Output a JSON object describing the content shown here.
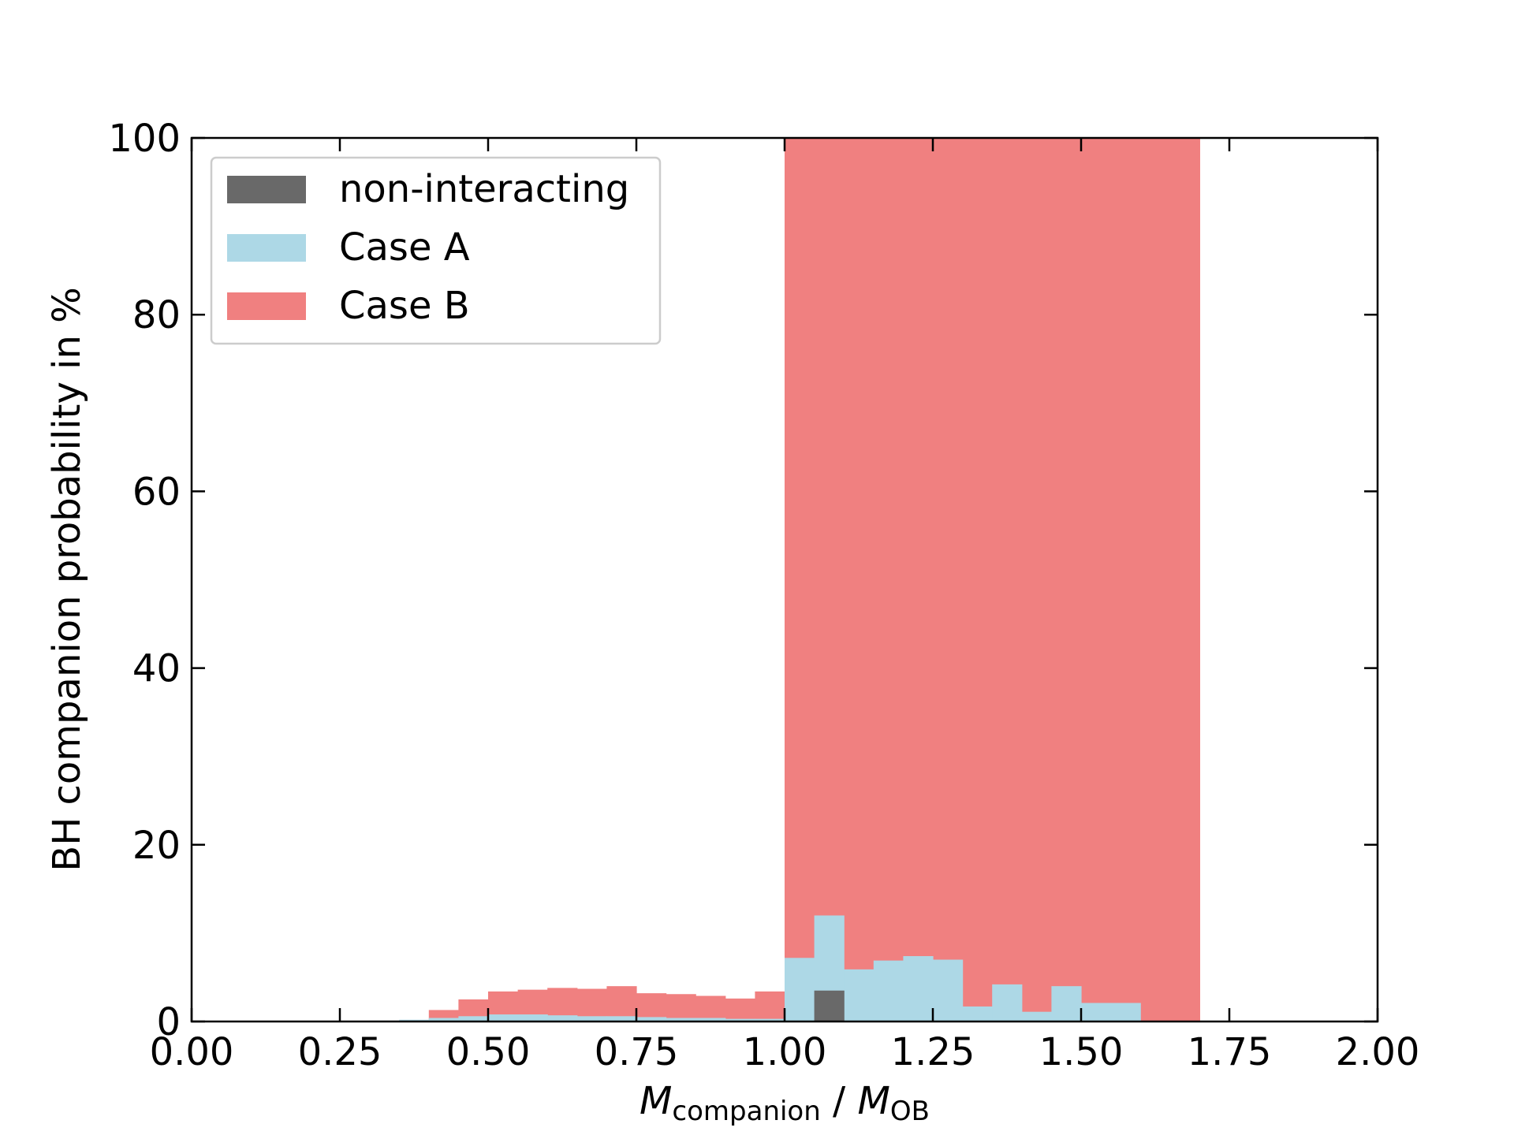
{
  "chart_data": {
    "type": "bar",
    "bin_width": 0.05,
    "bin_starts": [
      0.0,
      0.05,
      0.1,
      0.15,
      0.2,
      0.25,
      0.3,
      0.35,
      0.4,
      0.45,
      0.5,
      0.55,
      0.6,
      0.65,
      0.7,
      0.75,
      0.8,
      0.85,
      0.9,
      0.95,
      1.0,
      1.05,
      1.1,
      1.15,
      1.2,
      1.25,
      1.3,
      1.35,
      1.4,
      1.45,
      1.5,
      1.55,
      1.6,
      1.65,
      1.7,
      1.75,
      1.8,
      1.85,
      1.9,
      1.95
    ],
    "series": [
      {
        "name": "non-interacting",
        "color": "#696969",
        "values": [
          0,
          0,
          0,
          0,
          0,
          0,
          0,
          0,
          0,
          0,
          0,
          0,
          0,
          0,
          0,
          0,
          0,
          0,
          0,
          0,
          0,
          3.5,
          0,
          0,
          0,
          0,
          0,
          0,
          0,
          0,
          0,
          0,
          0,
          0,
          0,
          0,
          0,
          0,
          0,
          0
        ]
      },
      {
        "name": "Case A",
        "color": "#add8e6",
        "values": [
          0,
          0,
          0,
          0,
          0,
          0,
          0.1,
          0.2,
          0.4,
          0.6,
          0.8,
          0.8,
          0.7,
          0.6,
          0.6,
          0.5,
          0.4,
          0.4,
          0.3,
          0.3,
          7.2,
          12.0,
          5.9,
          6.9,
          7.4,
          7.0,
          1.7,
          4.2,
          1.1,
          4.0,
          2.1,
          2.1,
          0,
          0,
          0,
          0,
          0,
          0,
          0,
          0
        ]
      },
      {
        "name": "Case B",
        "color": "#f08080",
        "values": [
          0,
          0,
          0,
          0,
          0,
          0,
          0,
          0,
          1.3,
          2.5,
          3.4,
          3.6,
          3.8,
          3.7,
          4.0,
          3.2,
          3.1,
          2.9,
          2.6,
          3.4,
          100,
          100,
          100,
          100,
          100,
          100,
          100,
          100,
          100,
          100,
          100,
          100,
          100,
          100,
          0,
          0,
          0,
          0,
          0,
          0
        ]
      }
    ],
    "draw_order": [
      "Case B",
      "Case A",
      "non-interacting"
    ],
    "xlim": [
      0,
      2
    ],
    "ylim": [
      0,
      100
    ],
    "xticks": [
      "0.00",
      "0.25",
      "0.50",
      "0.75",
      "1.00",
      "1.25",
      "1.50",
      "1.75",
      "2.00"
    ],
    "yticks": [
      "0",
      "20",
      "40",
      "60",
      "80",
      "100"
    ],
    "xlabel_main_1": "M",
    "xlabel_sub_1": "companion",
    "xlabel_sep": " / ",
    "xlabel_main_2": "M",
    "xlabel_sub_2": "OB",
    "ylabel": "BH companion probability in %",
    "legend_position": "upper-left",
    "legend": [
      "non-interacting",
      "Case A",
      "Case B"
    ]
  }
}
